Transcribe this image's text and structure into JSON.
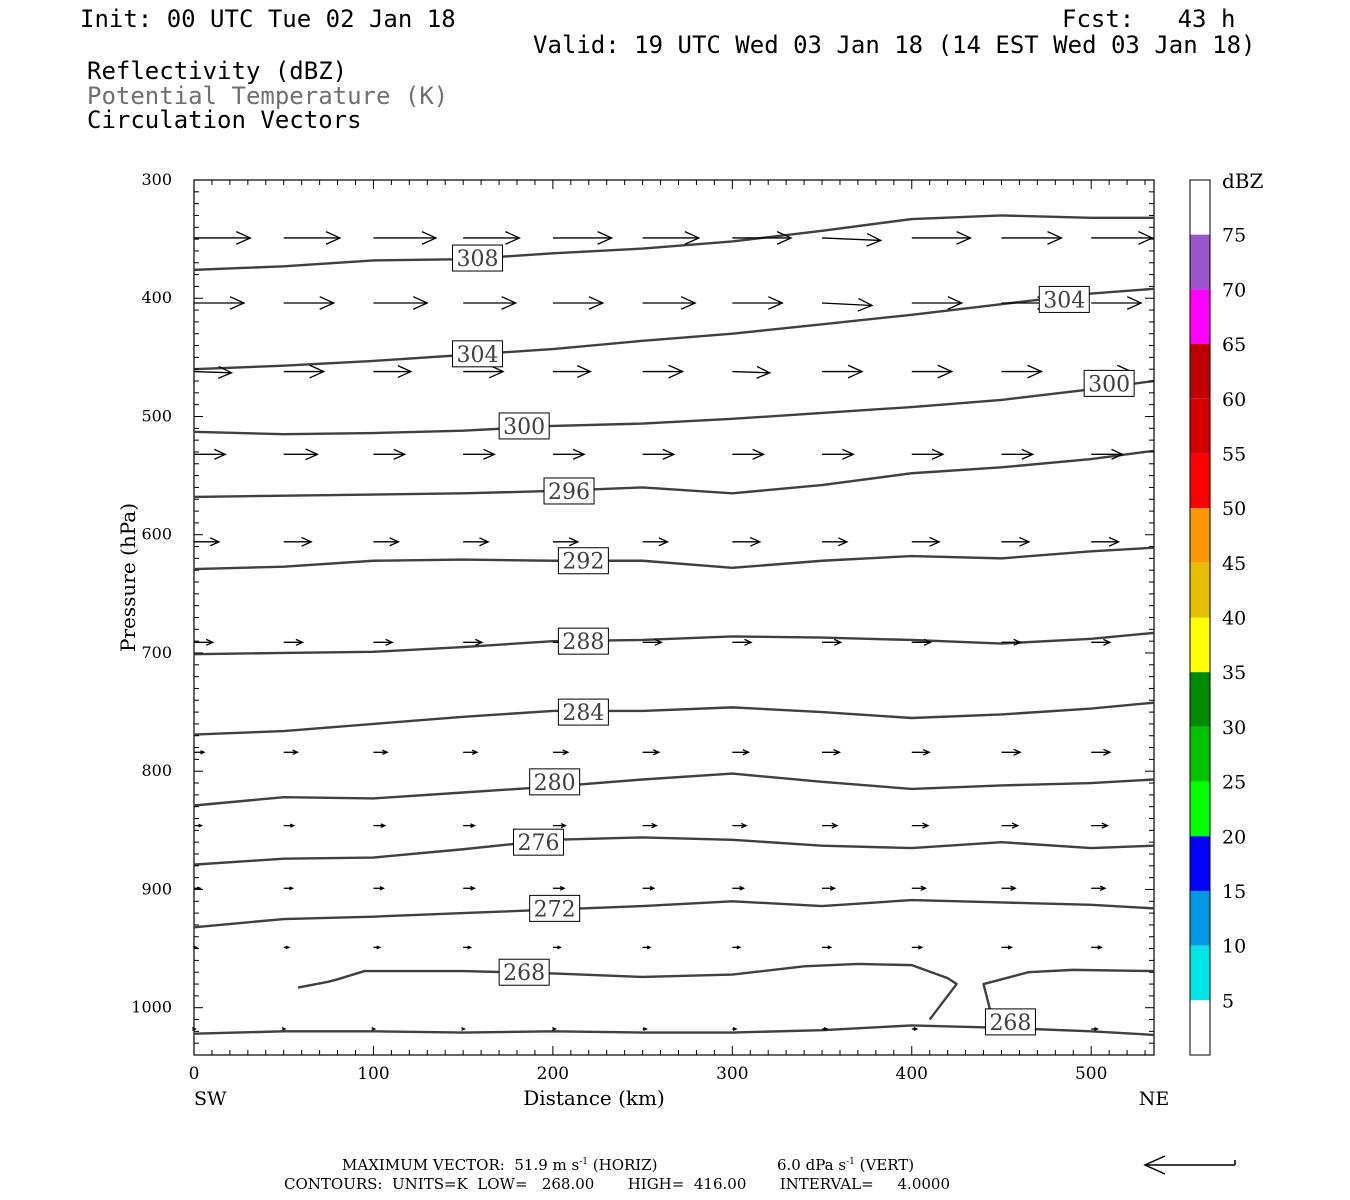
{
  "header": {
    "init": "Init: 00 UTC Tue 02 Jan 18",
    "fcst": "Fcst:   43 h",
    "valid": "Valid: 19 UTC Wed 03 Jan 18 (14 EST Wed 03 Jan 18)",
    "field1": "Reflectivity (dBZ)",
    "field2": "Potential Temperature (K)",
    "field3": "Circulation Vectors"
  },
  "footer": {
    "max_vector": "MAXIMUM VECTOR:  51.9 m s",
    "horiz": " (HORIZ)",
    "vert_val": "6.0 dPa s",
    "vert": " (VERT)",
    "sup": "-1",
    "contours": "CONTOURS:  UNITS=K  LOW=   268.00       HIGH=  416.00       INTERVAL=     4.0000"
  },
  "colors": {
    "contour": "#404040",
    "potential_temp_label": "#707070"
  },
  "chart_data": {
    "type": "line",
    "xlabel": "Distance (km)",
    "ylabel": "Pressure (hPa)",
    "xlim": [
      0,
      535
    ],
    "ylim": [
      1040,
      300
    ],
    "x_ticks": [
      0,
      100,
      200,
      300,
      400,
      500
    ],
    "y_ticks": [
      300,
      400,
      500,
      600,
      700,
      800,
      900,
      1000
    ],
    "x_endpoints": {
      "left": "SW",
      "right": "NE"
    },
    "colorbar": {
      "title": "dBZ",
      "levels": [
        5,
        10,
        15,
        20,
        25,
        30,
        35,
        40,
        45,
        50,
        55,
        60,
        65,
        70,
        75
      ],
      "colors": [
        "#ffffff",
        "#00e6e6",
        "#0099e6",
        "#0000ff",
        "#00ff00",
        "#00c400",
        "#008c00",
        "#ffff00",
        "#e6be00",
        "#ff9600",
        "#ff0000",
        "#d70000",
        "#c00000",
        "#ff00ff",
        "#9955c9",
        "#ffffff"
      ]
    },
    "series": [
      {
        "name": "308",
        "x": [
          0,
          50,
          100,
          150,
          200,
          250,
          300,
          350,
          400,
          450,
          500,
          535
        ],
        "y": [
          376,
          373,
          368,
          367,
          362,
          358,
          352,
          343,
          333,
          330,
          332,
          332
        ]
      },
      {
        "name": "304",
        "x": [
          0,
          50,
          100,
          150,
          200,
          250,
          300,
          350,
          400,
          450,
          500,
          535
        ],
        "y": [
          460,
          457,
          453,
          448,
          443,
          436,
          430,
          422,
          414,
          405,
          396,
          392
        ]
      },
      {
        "name": "300",
        "x": [
          0,
          50,
          100,
          150,
          200,
          250,
          300,
          350,
          400,
          450,
          500,
          535
        ],
        "y": [
          513,
          515,
          514,
          512,
          508,
          506,
          502,
          497,
          492,
          486,
          477,
          470
        ]
      },
      {
        "name": "296",
        "x": [
          0,
          50,
          100,
          150,
          200,
          250,
          300,
          350,
          400,
          450,
          500,
          535
        ],
        "y": [
          568,
          567,
          566,
          565,
          563,
          560,
          565,
          558,
          548,
          543,
          536,
          529
        ]
      },
      {
        "name": "292",
        "x": [
          0,
          50,
          100,
          150,
          200,
          250,
          300,
          350,
          400,
          450,
          500,
          535
        ],
        "y": [
          629,
          627,
          622,
          621,
          622,
          622,
          628,
          622,
          618,
          620,
          614,
          611
        ]
      },
      {
        "name": "288",
        "x": [
          0,
          50,
          100,
          150,
          200,
          250,
          300,
          350,
          400,
          450,
          500,
          535
        ],
        "y": [
          701,
          700,
          699,
          695,
          690,
          689,
          686,
          687,
          689,
          692,
          688,
          683
        ]
      },
      {
        "name": "284",
        "x": [
          0,
          50,
          100,
          150,
          200,
          250,
          300,
          350,
          400,
          450,
          500,
          535
        ],
        "y": [
          769,
          766,
          760,
          754,
          749,
          749,
          746,
          750,
          755,
          752,
          747,
          742
        ]
      },
      {
        "name": "280",
        "x": [
          0,
          50,
          100,
          150,
          200,
          250,
          300,
          350,
          400,
          450,
          500,
          535
        ],
        "y": [
          829,
          822,
          823,
          818,
          813,
          807,
          802,
          809,
          815,
          812,
          810,
          807
        ]
      },
      {
        "name": "276",
        "x": [
          0,
          50,
          100,
          150,
          200,
          250,
          300,
          350,
          400,
          450,
          500,
          535
        ],
        "y": [
          879,
          874,
          873,
          866,
          858,
          856,
          858,
          863,
          865,
          860,
          865,
          863
        ]
      },
      {
        "name": "272",
        "x": [
          0,
          50,
          100,
          150,
          200,
          250,
          300,
          350,
          400,
          450,
          500,
          535
        ],
        "y": [
          932,
          925,
          923,
          920,
          917,
          914,
          910,
          914,
          909,
          911,
          913,
          916
        ]
      },
      {
        "name": "268",
        "x": [
          0,
          50,
          100,
          150,
          200,
          250,
          300,
          350,
          400,
          450,
          500,
          535
        ],
        "y": [
          1022,
          1020,
          1020,
          1021,
          1020,
          1021,
          1021,
          1019,
          1015,
          1017,
          1020,
          1023
        ]
      },
      {
        "name": "268",
        "x": [
          58,
          75,
          80,
          95,
          150,
          200,
          250,
          300,
          340,
          370,
          400,
          420,
          425,
          415,
          410
        ],
        "y": [
          983,
          978,
          976,
          969,
          969,
          971,
          974,
          972,
          965,
          963,
          964,
          975,
          980,
          1000,
          1010
        ]
      },
      {
        "name": "268",
        "x": [
          445,
          440,
          465,
          490,
          535
        ],
        "y": [
          1010,
          980,
          970,
          968,
          969
        ]
      }
    ],
    "labels": [
      {
        "text": "308",
        "x": 158,
        "y": 366
      },
      {
        "text": "304",
        "x": 158,
        "y": 447
      },
      {
        "text": "300",
        "x": 184,
        "y": 508
      },
      {
        "text": "296",
        "x": 209,
        "y": 563
      },
      {
        "text": "292",
        "x": 217,
        "y": 622
      },
      {
        "text": "288",
        "x": 217,
        "y": 690
      },
      {
        "text": "284",
        "x": 217,
        "y": 750
      },
      {
        "text": "280",
        "x": 201,
        "y": 809
      },
      {
        "text": "276",
        "x": 192,
        "y": 860
      },
      {
        "text": "272",
        "x": 201,
        "y": 916
      },
      {
        "text": "268",
        "x": 184,
        "y": 970
      },
      {
        "text": "304",
        "x": 485,
        "y": 401
      },
      {
        "text": "300",
        "x": 510,
        "y": 472
      },
      {
        "text": "268",
        "x": 455,
        "y": 1012
      }
    ],
    "vector_rows": [
      {
        "p": 349,
        "u": [
          45,
          45,
          50,
          45,
          47,
          45,
          47,
          47,
          47,
          48,
          49,
          47
        ],
        "w": [
          0,
          0,
          0,
          0,
          0,
          0,
          0,
          -2,
          0,
          0,
          0,
          0
        ]
      },
      {
        "p": 404,
        "u": [
          40,
          40,
          43,
          42,
          40,
          42,
          40,
          40,
          40,
          40,
          40,
          38
        ],
        "w": [
          0,
          0,
          0,
          0,
          0,
          0,
          0,
          -2,
          0,
          0,
          0,
          0
        ]
      },
      {
        "p": 462,
        "u": [
          30,
          32,
          30,
          32,
          30,
          32,
          30,
          32,
          32,
          32,
          32,
          30
        ],
        "w": [
          -1,
          0,
          0,
          0,
          0,
          0,
          -1,
          0,
          0,
          0,
          0,
          0
        ]
      },
      {
        "p": 532,
        "u": [
          25,
          27,
          25,
          25,
          25,
          25,
          25,
          25,
          25,
          25,
          25,
          25
        ],
        "w": [
          0,
          0,
          0,
          0,
          0,
          0,
          0,
          0,
          0,
          0,
          0,
          0
        ]
      },
      {
        "p": 606,
        "u": [
          20,
          22,
          20,
          20,
          20,
          20,
          22,
          20,
          22,
          22,
          22,
          20
        ],
        "w": [
          0,
          0,
          0,
          0,
          0,
          0,
          0,
          0,
          0,
          0,
          0,
          0
        ]
      },
      {
        "p": 691,
        "u": [
          15,
          15,
          15,
          15,
          15,
          15,
          15,
          15,
          15,
          15,
          15,
          15
        ],
        "w": [
          0,
          0,
          0,
          0,
          0,
          0,
          0,
          0,
          0,
          0,
          0,
          0
        ]
      },
      {
        "p": 784,
        "u": [
          8,
          11,
          11,
          11,
          12,
          13,
          13,
          14,
          14,
          15,
          15,
          14
        ],
        "w": [
          0,
          0,
          0,
          0,
          0,
          0,
          0,
          0,
          0,
          0,
          0,
          0
        ]
      },
      {
        "p": 846,
        "u": [
          6,
          8,
          9,
          9,
          10,
          11,
          11,
          12,
          13,
          13,
          13,
          11
        ],
        "w": [
          0,
          0,
          0,
          0,
          0,
          0,
          0,
          0,
          0,
          0,
          0,
          0
        ]
      },
      {
        "p": 899,
        "u": [
          5,
          7,
          8,
          9,
          9,
          9,
          9,
          10,
          11,
          11,
          11,
          9
        ],
        "w": [
          0,
          0,
          0,
          0,
          0,
          0,
          0,
          0,
          0,
          0,
          0,
          0
        ]
      },
      {
        "p": 949,
        "u": [
          2,
          4,
          5,
          6,
          6,
          6,
          6,
          7,
          8,
          8,
          8,
          8
        ],
        "w": [
          0,
          0,
          0,
          0,
          0,
          0,
          0,
          0,
          0,
          0,
          0,
          0
        ]
      },
      {
        "p": 1018,
        "u": [
          1,
          1,
          1,
          1,
          2,
          3,
          3,
          4,
          4,
          5,
          5,
          5
        ],
        "w": [
          0,
          0,
          0,
          0,
          0,
          0,
          0,
          0,
          0,
          0,
          0,
          0
        ]
      }
    ]
  }
}
